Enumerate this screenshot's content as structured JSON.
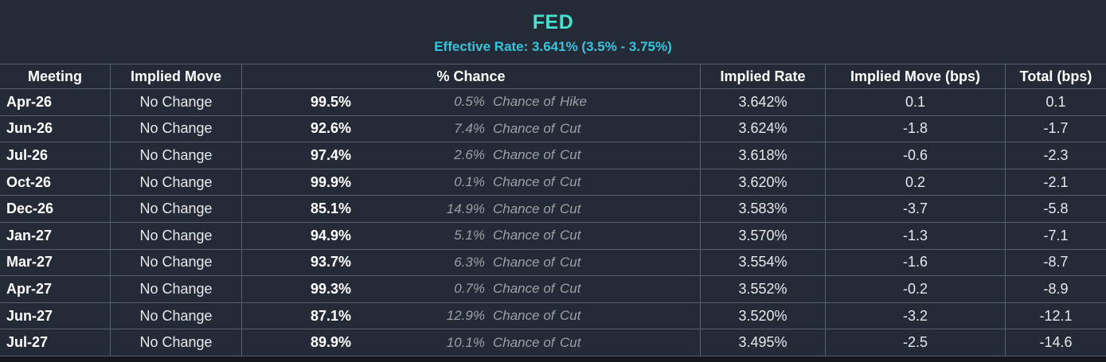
{
  "header": {
    "title": "FED",
    "subtitle": "Effective Rate: 3.641% (3.5% - 3.75%)"
  },
  "columns": [
    "Meeting",
    "Implied Move",
    "% Chance",
    "Implied Rate",
    "Implied Move (bps)",
    "Total (bps)"
  ],
  "rows": [
    {
      "meeting": "Apr-26",
      "implied_move": "No Change",
      "main_pct": "99.5%",
      "alt_pct": "0.5%",
      "chance_text": "Chance of",
      "direction": "Hike",
      "implied_rate": "3.642%",
      "move_bps": "0.1",
      "total_bps": "0.1"
    },
    {
      "meeting": "Jun-26",
      "implied_move": "No Change",
      "main_pct": "92.6%",
      "alt_pct": "7.4%",
      "chance_text": "Chance of",
      "direction": "Cut",
      "implied_rate": "3.624%",
      "move_bps": "-1.8",
      "total_bps": "-1.7"
    },
    {
      "meeting": "Jul-26",
      "implied_move": "No Change",
      "main_pct": "97.4%",
      "alt_pct": "2.6%",
      "chance_text": "Chance of",
      "direction": "Cut",
      "implied_rate": "3.618%",
      "move_bps": "-0.6",
      "total_bps": "-2.3"
    },
    {
      "meeting": "Oct-26",
      "implied_move": "No Change",
      "main_pct": "99.9%",
      "alt_pct": "0.1%",
      "chance_text": "Chance of",
      "direction": "Cut",
      "implied_rate": "3.620%",
      "move_bps": "0.2",
      "total_bps": "-2.1"
    },
    {
      "meeting": "Dec-26",
      "implied_move": "No Change",
      "main_pct": "85.1%",
      "alt_pct": "14.9%",
      "chance_text": "Chance of",
      "direction": "Cut",
      "implied_rate": "3.583%",
      "move_bps": "-3.7",
      "total_bps": "-5.8"
    },
    {
      "meeting": "Jan-27",
      "implied_move": "No Change",
      "main_pct": "94.9%",
      "alt_pct": "5.1%",
      "chance_text": "Chance of",
      "direction": "Cut",
      "implied_rate": "3.570%",
      "move_bps": "-1.3",
      "total_bps": "-7.1"
    },
    {
      "meeting": "Mar-27",
      "implied_move": "No Change",
      "main_pct": "93.7%",
      "alt_pct": "6.3%",
      "chance_text": "Chance of",
      "direction": "Cut",
      "implied_rate": "3.554%",
      "move_bps": "-1.6",
      "total_bps": "-8.7"
    },
    {
      "meeting": "Apr-27",
      "implied_move": "No Change",
      "main_pct": "99.3%",
      "alt_pct": "0.7%",
      "chance_text": "Chance of",
      "direction": "Cut",
      "implied_rate": "3.552%",
      "move_bps": "-0.2",
      "total_bps": "-8.9"
    },
    {
      "meeting": "Jun-27",
      "implied_move": "No Change",
      "main_pct": "87.1%",
      "alt_pct": "12.9%",
      "chance_text": "Chance of",
      "direction": "Cut",
      "implied_rate": "3.520%",
      "move_bps": "-3.2",
      "total_bps": "-12.1"
    },
    {
      "meeting": "Jul-27",
      "implied_move": "No Change",
      "main_pct": "89.9%",
      "alt_pct": "10.1%",
      "chance_text": "Chance of",
      "direction": "Cut",
      "implied_rate": "3.495%",
      "move_bps": "-2.5",
      "total_bps": "-14.6"
    }
  ],
  "colors": {
    "background": "#242a36",
    "title_accent": "#47e2cd",
    "subtitle_accent": "#38c4dc",
    "grid_line": "#566070",
    "muted_text": "#9aa0a9",
    "bottom_strip": "#14171d"
  }
}
